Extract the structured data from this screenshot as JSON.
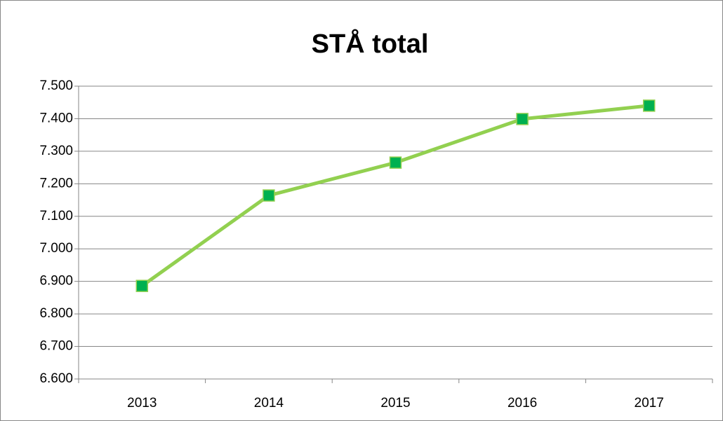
{
  "chart_data": {
    "type": "line",
    "title": "STÅ total",
    "categories": [
      "2013",
      "2014",
      "2015",
      "2016",
      "2017"
    ],
    "series": [
      {
        "name": "STÅ total",
        "color": "#92d050",
        "marker_color": "#00b050",
        "values": [
          6886,
          7164,
          7265,
          7399,
          7440
        ]
      }
    ],
    "ylim": [
      6600,
      7500
    ],
    "yticks": [
      {
        "value": 6600,
        "label": "6.600"
      },
      {
        "value": 6700,
        "label": "6.700"
      },
      {
        "value": 6800,
        "label": "6.800"
      },
      {
        "value": 6900,
        "label": "6.900"
      },
      {
        "value": 7000,
        "label": "7.000"
      },
      {
        "value": 7100,
        "label": "7.100"
      },
      {
        "value": 7200,
        "label": "7.200"
      },
      {
        "value": 7300,
        "label": "7.300"
      },
      {
        "value": 7400,
        "label": "7.400"
      },
      {
        "value": 7500,
        "label": "7.500"
      }
    ],
    "grid": true,
    "legend": false
  }
}
